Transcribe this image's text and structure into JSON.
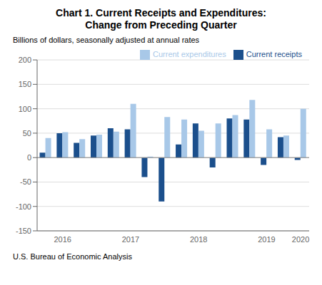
{
  "chart_data": {
    "type": "bar",
    "title": "Chart 1. Current Receipts and Expenditures:\nChange from Preceding Quarter",
    "subtitle": "Billions of dollars, seasonally adjusted at annual rates",
    "annotations": [
      "U.S. Bureau of Economic Analysis"
    ],
    "categories": [
      null,
      "2016",
      null,
      null,
      null,
      "2017",
      null,
      null,
      null,
      "2018",
      null,
      null,
      null,
      "2019",
      null,
      "2020"
    ],
    "series": [
      {
        "name": "Current receipts",
        "color": "#1b4f8c",
        "values": [
          10,
          50,
          30,
          45,
          60,
          58,
          -40,
          -90,
          27,
          70,
          -20,
          80,
          78,
          -15,
          42,
          -5
        ]
      },
      {
        "name": "Current expenditures",
        "color": "#a8c8e8",
        "values": [
          40,
          52,
          38,
          47,
          53,
          110,
          2,
          83,
          78,
          55,
          70,
          87,
          118,
          58,
          45,
          100
        ]
      }
    ],
    "ylim": [
      -150,
      200
    ],
    "yticks": [
      -150,
      -100,
      -50,
      0,
      50,
      100,
      150,
      200
    ],
    "grid": true,
    "legend": "upper right"
  }
}
